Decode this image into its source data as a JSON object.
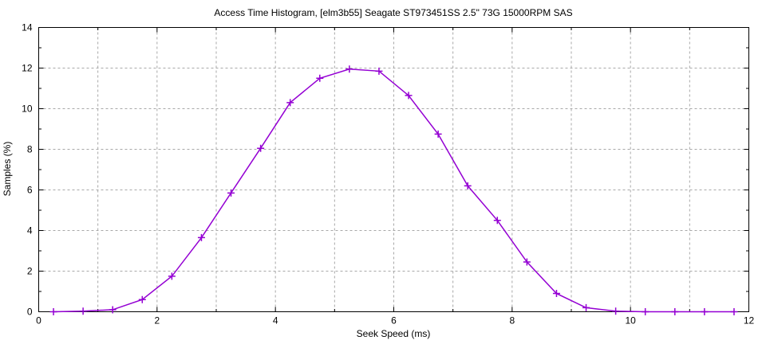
{
  "window": {
    "background_color": "#ffffff",
    "text_color": "#000000",
    "border_color": "#000000"
  },
  "chart_data": {
    "type": "line",
    "title": "Access Time Histogram, [elm3b55] Seagate ST973451SS 2.5\" 73G 15000RPM SAS",
    "xlabel": "Seek Speed (ms)",
    "ylabel": "Samples (%)",
    "xlim": [
      0,
      12
    ],
    "ylim": [
      0,
      14
    ],
    "xticks_major": [
      0,
      2,
      4,
      6,
      8,
      10,
      12
    ],
    "xticks_minor": [
      1,
      3,
      5,
      7,
      9,
      11
    ],
    "yticks_major": [
      0,
      2,
      4,
      6,
      8,
      10,
      12,
      14
    ],
    "yticks_minor": [
      1,
      3,
      5,
      7,
      9,
      11,
      13
    ],
    "grid": {
      "vertical_lines_at": [
        1,
        2,
        3,
        4,
        5,
        6,
        7,
        8,
        9,
        10,
        11
      ],
      "horizontal_lines_at": [
        2,
        4,
        6,
        8,
        10,
        12
      ],
      "style": "dashed",
      "color": "#a8a8a8"
    },
    "legend": "none",
    "series": [
      {
        "name": "seek-time-distribution",
        "color": "#9400d3",
        "marker": "plus",
        "points": [
          [
            0.25,
            0.0
          ],
          [
            0.75,
            0.03
          ],
          [
            1.25,
            0.1
          ],
          [
            1.75,
            0.6
          ],
          [
            2.25,
            1.75
          ],
          [
            2.75,
            3.65
          ],
          [
            3.25,
            5.85
          ],
          [
            3.75,
            8.05
          ],
          [
            4.25,
            10.3
          ],
          [
            4.75,
            11.5
          ],
          [
            5.25,
            11.95
          ],
          [
            5.75,
            11.85
          ],
          [
            6.25,
            10.65
          ],
          [
            6.75,
            8.75
          ],
          [
            7.25,
            6.2
          ],
          [
            7.75,
            4.5
          ],
          [
            8.25,
            2.45
          ],
          [
            8.75,
            0.9
          ],
          [
            9.25,
            0.2
          ],
          [
            9.75,
            0.03
          ],
          [
            10.25,
            0.0
          ],
          [
            10.75,
            0.0
          ],
          [
            11.25,
            0.0
          ],
          [
            11.75,
            0.0
          ]
        ]
      }
    ]
  }
}
